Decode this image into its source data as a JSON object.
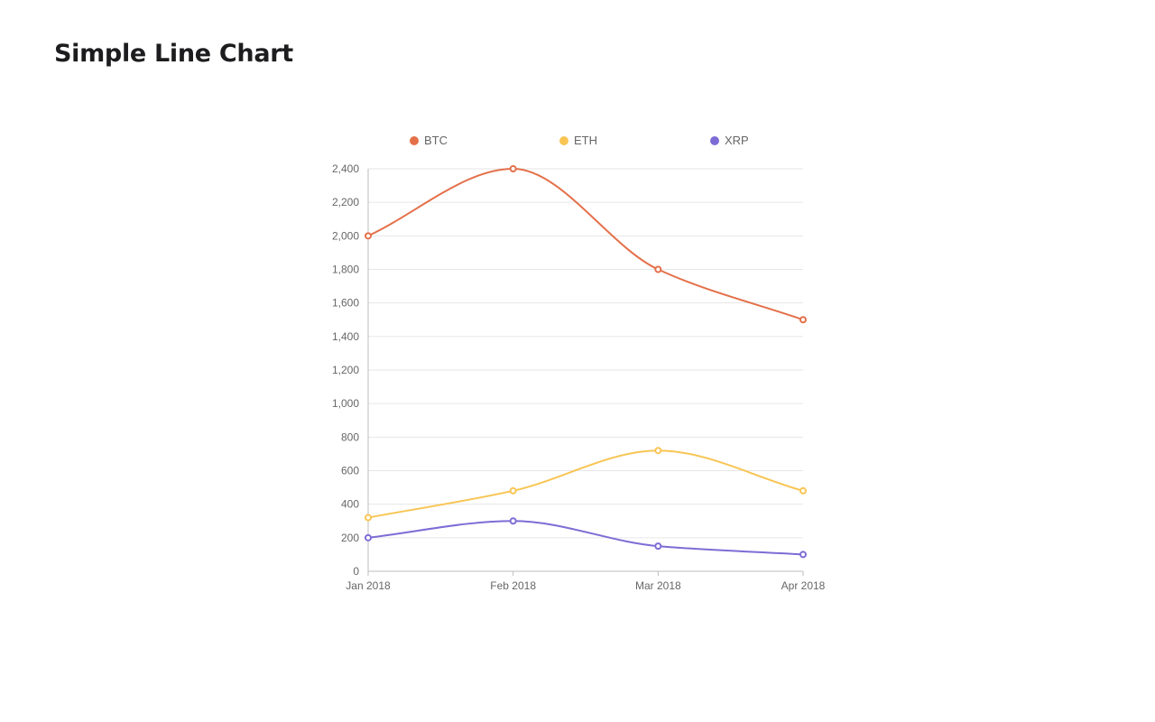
{
  "page": {
    "title": "Simple Line Chart"
  },
  "chart_data": {
    "type": "line",
    "title": "",
    "xlabel": "",
    "ylabel": "",
    "categories": [
      "Jan 2018",
      "Feb 2018",
      "Mar 2018",
      "Apr 2018"
    ],
    "ylim": [
      0,
      2400
    ],
    "yticks": [
      0,
      200,
      400,
      600,
      800,
      1000,
      1200,
      1400,
      1600,
      1800,
      2000,
      2200,
      2400
    ],
    "ytick_labels": [
      "0",
      "200",
      "400",
      "600",
      "800",
      "1,000",
      "1,200",
      "1,400",
      "1,600",
      "1,800",
      "2,000",
      "2,200",
      "2,400"
    ],
    "grid": "horizontal",
    "legend_position": "top",
    "curve": "smooth",
    "series": [
      {
        "name": "BTC",
        "color": "#e4704a",
        "values": [
          2000,
          2400,
          1800,
          1500
        ]
      },
      {
        "name": "ETH",
        "color": "#f8c554",
        "values": [
          320,
          480,
          720,
          480
        ]
      },
      {
        "name": "XRP",
        "color": "#7e6cd5",
        "values": [
          200,
          300,
          150,
          100
        ]
      }
    ]
  }
}
